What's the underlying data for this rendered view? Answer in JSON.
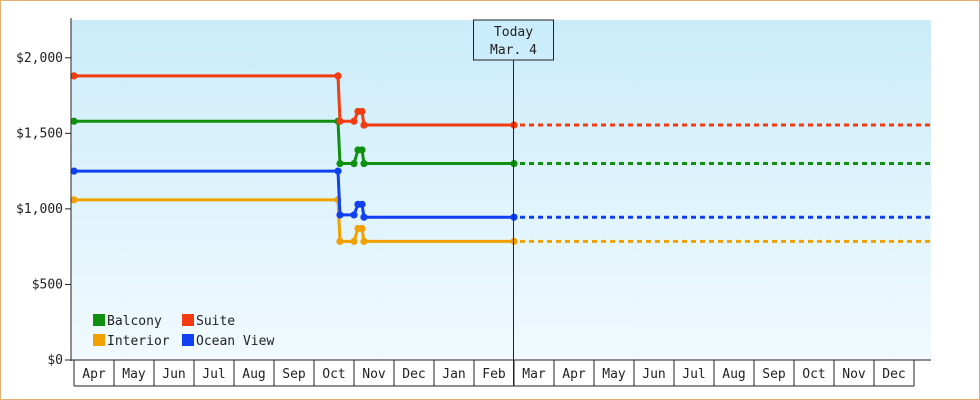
{
  "chart_data": {
    "type": "line",
    "title": "",
    "xlabel": "",
    "ylabel": "",
    "ylim": [
      0,
      2250
    ],
    "yticks": [
      0,
      500,
      1000,
      1500,
      2000
    ],
    "ytick_labels": [
      "$0",
      "$500",
      "$1,000",
      "$1,500",
      "$2,000"
    ],
    "x_months": [
      "Apr",
      "May",
      "Jun",
      "Jul",
      "Aug",
      "Sep",
      "Oct",
      "Nov",
      "Dec",
      "Jan",
      "Feb",
      "Mar",
      "Apr",
      "May",
      "Jun",
      "Jul",
      "Aug",
      "Sep",
      "Oct",
      "Nov",
      "Dec"
    ],
    "xlim": [
      "Apr",
      "Dec (2nd year)"
    ],
    "legend_position": "bottom-left",
    "grid": false,
    "today_marker": {
      "line1": "Today",
      "line2": "Mar. 4",
      "x_month_index": 11
    },
    "series": [
      {
        "name": "Balcony",
        "color": "#109010",
        "points": [
          [
            0,
            1580
          ],
          [
            6.6,
            1580
          ],
          [
            6.65,
            1300
          ],
          [
            7.0,
            1300
          ],
          [
            7.1,
            1390
          ],
          [
            7.2,
            1390
          ],
          [
            7.25,
            1300
          ],
          [
            11.0,
            1300
          ]
        ],
        "projection": [
          11.0,
          21.5
        ]
      },
      {
        "name": "Interior",
        "color": "#f0a000",
        "points": [
          [
            0,
            1060
          ],
          [
            6.6,
            1060
          ],
          [
            6.65,
            785
          ],
          [
            7.0,
            785
          ],
          [
            7.1,
            870
          ],
          [
            7.2,
            870
          ],
          [
            7.25,
            785
          ],
          [
            11.0,
            785
          ]
        ],
        "projection": [
          11.0,
          21.5
        ]
      },
      {
        "name": "Suite",
        "color": "#f03c10",
        "points": [
          [
            0,
            1880
          ],
          [
            6.6,
            1880
          ],
          [
            6.65,
            1580
          ],
          [
            7.0,
            1580
          ],
          [
            7.1,
            1645
          ],
          [
            7.2,
            1645
          ],
          [
            7.25,
            1555
          ],
          [
            11.0,
            1555
          ]
        ],
        "projection": [
          11.0,
          21.5
        ]
      },
      {
        "name": "Ocean View",
        "color": "#1040f0",
        "points": [
          [
            0,
            1250
          ],
          [
            6.6,
            1250
          ],
          [
            6.65,
            960
          ],
          [
            7.0,
            960
          ],
          [
            7.1,
            1030
          ],
          [
            7.2,
            1030
          ],
          [
            7.25,
            945
          ],
          [
            11.0,
            945
          ]
        ],
        "projection": [
          11.0,
          21.5
        ]
      }
    ]
  }
}
